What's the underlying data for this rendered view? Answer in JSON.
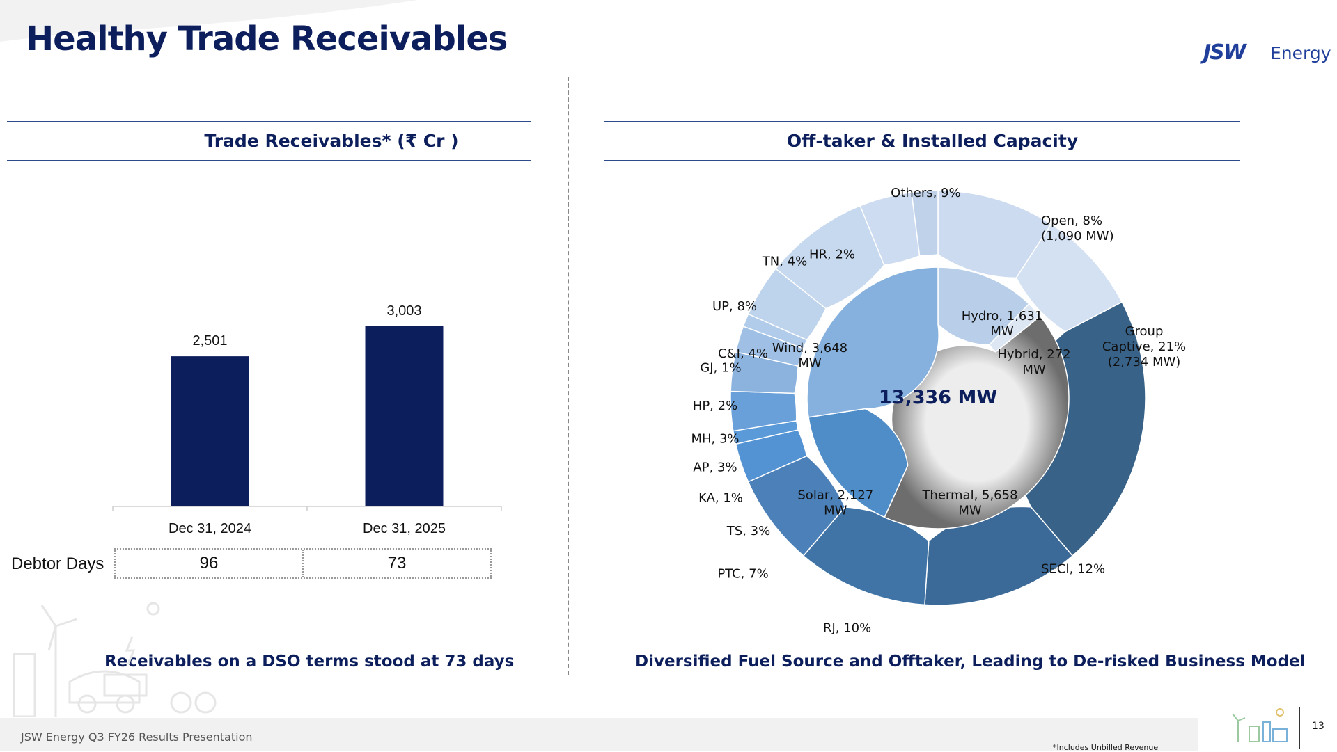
{
  "title": "Healthy Trade Receivables",
  "logo": {
    "mark": "JSW",
    "text": "Energy",
    "brand_color": "#1f3f9a"
  },
  "left_panel": {
    "heading": "Trade Receivables* (₹ Cr )",
    "debtor_days_label": "Debtor Days",
    "debtor_days": [
      "96",
      "73"
    ],
    "caption": "Receivables on a DSO terms stood at 73 days"
  },
  "right_panel": {
    "heading": "Off-taker & Installed Capacity",
    "caption": "Diversified Fuel Source and Offtaker, Leading to De-risked Business Model"
  },
  "chart_data": [
    {
      "type": "bar",
      "title": "Trade Receivables* (₹ Cr )",
      "categories": [
        "Dec 31, 2024",
        "Dec 31, 2025"
      ],
      "values": [
        2501,
        3003
      ],
      "value_labels": [
        "2,501",
        "3,003"
      ],
      "ylim": [
        0,
        3800
      ],
      "color": "#0c1f5c",
      "xlabel": "",
      "ylabel": ""
    },
    {
      "type": "pie",
      "title": "Off-taker & Installed Capacity",
      "center_label": "13,336 MW",
      "inner_ring": {
        "name": "Installed Capacity by Fuel",
        "slices": [
          {
            "name": "Hydro",
            "value": 1631,
            "lines": [
              "Hydro, 1,631",
              "MW"
            ],
            "color": "#b9cfe9"
          },
          {
            "name": "Hybrid",
            "value": 272,
            "lines": [
              "Hybrid, 272",
              "MW"
            ],
            "color": "#dde7f4"
          },
          {
            "name": "Thermal",
            "value": 5658,
            "lines": [
              "Thermal, 5,658",
              "MW"
            ],
            "color": "gradient"
          },
          {
            "name": "Solar",
            "value": 2127,
            "lines": [
              "Solar, 2,127",
              "MW"
            ],
            "color": "#4f8dc8"
          },
          {
            "name": "Wind",
            "value": 3648,
            "lines": [
              "Wind, 3,648",
              "MW"
            ],
            "color": "#86b1de"
          }
        ]
      },
      "outer_ring": {
        "name": "Off-taker share",
        "slices": [
          {
            "name": "Others",
            "value": 9,
            "lines": [
              "Others, 9%"
            ],
            "color": "#ccdbf0"
          },
          {
            "name": "Open",
            "value": 8,
            "lines": [
              "Open, 8%",
              "(1,090 MW)"
            ],
            "color": "#d4e1f2"
          },
          {
            "name": "Group Captive",
            "value": 21,
            "lines": [
              "Group",
              "Captive, 21%",
              "(2,734 MW)"
            ],
            "color": "#386287"
          },
          {
            "name": "SECI",
            "value": 12,
            "lines": [
              "SECI, 12%"
            ],
            "color": "#3c6a98"
          },
          {
            "name": "RJ",
            "value": 10,
            "lines": [
              "RJ, 10%"
            ],
            "color": "#4074a6"
          },
          {
            "name": "PTC",
            "value": 7,
            "lines": [
              "PTC, 7%"
            ],
            "color": "#4b80b8"
          },
          {
            "name": "TS",
            "value": 3,
            "lines": [
              "TS, 3%"
            ],
            "color": "#5392d3"
          },
          {
            "name": "KA",
            "value": 1,
            "lines": [
              "KA, 1%"
            ],
            "color": "#5a9ad8"
          },
          {
            "name": "AP",
            "value": 3,
            "lines": [
              "AP, 3%"
            ],
            "color": "#6aa0d9"
          },
          {
            "name": "MH",
            "value": 3,
            "lines": [
              "MH, 3%"
            ],
            "color": "#8cb2de"
          },
          {
            "name": "HP",
            "value": 2,
            "lines": [
              "HP, 2%"
            ],
            "color": "#9fc0e4"
          },
          {
            "name": "GJ",
            "value": 1,
            "lines": [
              "GJ, 1%"
            ],
            "color": "#b1cbea"
          },
          {
            "name": "C&I",
            "value": 4,
            "lines": [
              "C&I, 4%"
            ],
            "color": "#bed3ec"
          },
          {
            "name": "UP",
            "value": 8,
            "lines": [
              "UP, 8%"
            ],
            "color": "#c7d9ef"
          },
          {
            "name": "TN",
            "value": 4,
            "lines": [
              "TN, 4%"
            ],
            "color": "#cddcf0"
          },
          {
            "name": "HR",
            "value": 2,
            "lines": [
              "HR, 2%"
            ],
            "color": "#bfd2ea"
          }
        ]
      }
    }
  ],
  "footer": {
    "text": "JSW Energy Q3 FY26 Results Presentation",
    "footnote": "*Includes Unbilled Revenue",
    "page": "13"
  }
}
